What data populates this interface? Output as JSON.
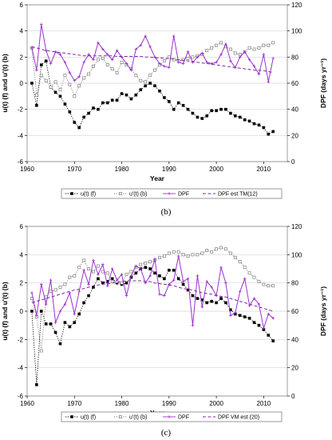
{
  "figure": {
    "background": "#ffffff"
  },
  "colors": {
    "uf": "#000000",
    "ub": "#808080",
    "dpf": "#9933cc",
    "est": "#7f2a9f"
  },
  "chart_data": [
    {
      "type": "line",
      "caption": "(b)",
      "xlabel": "Year",
      "ylabel": "u(t) (f) and u'(t) (b)",
      "ylabel2": "DPF (days yr⁻¹)",
      "xlim": [
        1960,
        2015
      ],
      "ylim": [
        -6,
        6
      ],
      "ylim2": [
        0,
        120
      ],
      "xticks": [
        1960,
        1970,
        1980,
        1990,
        2000,
        2010
      ],
      "yticks": [
        -6,
        -4,
        -2,
        0,
        2,
        4,
        6
      ],
      "yticks2": [
        0,
        20,
        40,
        60,
        80,
        100,
        120
      ],
      "grid": "horizontal",
      "legend_position": "bottom",
      "x": [
        1961,
        1962,
        1963,
        1964,
        1965,
        1966,
        1967,
        1968,
        1969,
        1970,
        1971,
        1972,
        1973,
        1974,
        1975,
        1976,
        1977,
        1978,
        1979,
        1980,
        1981,
        1982,
        1983,
        1984,
        1985,
        1986,
        1987,
        1988,
        1989,
        1990,
        1991,
        1992,
        1993,
        1994,
        1995,
        1996,
        1997,
        1998,
        1999,
        2000,
        2001,
        2002,
        2003,
        2004,
        2005,
        2006,
        2007,
        2008,
        2009,
        2010,
        2011,
        2012
      ],
      "series": [
        {
          "name": "u(t) (f)",
          "axis": "left",
          "style": "solid-filled-square",
          "values": [
            0,
            -1.7,
            1.4,
            1.7,
            -0.3,
            -0.7,
            -1.0,
            -1.6,
            -2.2,
            -3.0,
            -3.4,
            -2.6,
            -2.3,
            -1.9,
            -2.0,
            -1.5,
            -1.5,
            -1.3,
            -1.3,
            -0.8,
            -0.9,
            -1.2,
            -0.9,
            -0.5,
            -0.2,
            0,
            -0.2,
            -0.6,
            -1.1,
            -1.4,
            -2.0,
            -1.5,
            -1.7,
            -2.0,
            -2.3,
            -2.6,
            -2.7,
            -2.5,
            -2.1,
            -2.1,
            -2.0,
            -2.0,
            -2.3,
            -2.5,
            -2.6,
            -2.8,
            -2.9,
            -3.1,
            -3.2,
            -3.4,
            -3.9,
            -3.7
          ]
        },
        {
          "name": "u'(t) (b)",
          "axis": "left",
          "style": "dotted-open-square",
          "values": [
            2.7,
            -0.9,
            0.6,
            0.2,
            -0.3,
            0.1,
            -0.5,
            0.6,
            -0.1,
            -1.0,
            -0.2,
            0.4,
            0.7,
            1.3,
            1.8,
            1.9,
            1.4,
            1.1,
            0.8,
            1.6,
            1.4,
            1.1,
            0.6,
            0.2,
            0.1,
            0.6,
            1.0,
            1.4,
            1.7,
            2.0,
            1.8,
            1.7,
            1.8,
            1.9,
            2.0,
            2.1,
            2.2,
            2.5,
            2.7,
            2.9,
            3.1,
            2.8,
            2.6,
            2.3,
            2.2,
            2.4,
            2.7,
            2.6,
            2.7,
            2.9,
            2.9,
            3.1
          ]
        },
        {
          "name": "DPF",
          "axis": "right",
          "style": "solid-marker",
          "values": [
            87,
            70,
            105,
            85,
            75,
            84,
            82,
            76,
            68,
            62,
            65,
            76,
            82,
            78,
            91,
            86,
            82,
            78,
            85,
            80,
            75,
            70,
            86,
            89,
            96,
            88,
            80,
            75,
            73,
            72,
            96,
            76,
            75,
            84,
            76,
            80,
            83,
            76,
            75,
            76,
            82,
            90,
            77,
            72,
            80,
            84,
            78,
            73,
            67,
            82,
            61,
            79
          ]
        },
        {
          "name": "DPF est TM(12)",
          "axis": "right",
          "style": "dashed",
          "values": [
            88,
            87,
            86,
            85,
            84.5,
            84,
            83.5,
            83,
            82.5,
            82,
            81.5,
            81,
            81,
            81,
            81,
            81,
            81,
            81,
            80.5,
            80.5,
            80.5,
            80.5,
            80.5,
            80.5,
            80,
            80,
            79.5,
            79.5,
            79,
            79,
            78.5,
            78,
            77.5,
            77,
            76.5,
            76,
            75.5,
            75,
            74.5,
            74,
            73.5,
            73,
            72.5,
            72,
            71.5,
            71,
            70.5,
            70,
            70,
            69.5,
            69,
            68
          ]
        }
      ]
    },
    {
      "type": "line",
      "caption": "(c)",
      "xlabel": "Year",
      "ylabel": "u(t) (f) and u'(t) (b)",
      "ylabel2": "DPF (days yr⁻¹)",
      "xlim": [
        1960,
        2015
      ],
      "ylim": [
        -6,
        6
      ],
      "ylim2": [
        0,
        120
      ],
      "xticks": [
        1960,
        1970,
        1980,
        1990,
        2000,
        2010
      ],
      "yticks": [
        -6,
        -4,
        -2,
        0,
        2,
        4,
        6
      ],
      "yticks2": [
        0,
        20,
        40,
        60,
        80,
        100,
        120
      ],
      "grid": "horizontal",
      "legend_position": "bottom",
      "x": [
        1961,
        1962,
        1963,
        1964,
        1965,
        1966,
        1967,
        1968,
        1969,
        1970,
        1971,
        1972,
        1973,
        1974,
        1975,
        1976,
        1977,
        1978,
        1979,
        1980,
        1981,
        1982,
        1983,
        1984,
        1985,
        1986,
        1987,
        1988,
        1989,
        1990,
        1991,
        1992,
        1993,
        1994,
        1995,
        1996,
        1997,
        1998,
        1999,
        2000,
        2001,
        2002,
        2003,
        2004,
        2005,
        2006,
        2007,
        2008,
        2009,
        2010,
        2011,
        2012
      ],
      "series": [
        {
          "name": "u(t) (f)",
          "axis": "left",
          "style": "solid-filled-square",
          "values": [
            0,
            -5.2,
            0,
            -0.9,
            -0.9,
            -1.5,
            -2.3,
            -0.8,
            -1.1,
            -0.8,
            -0.2,
            0.6,
            1.1,
            1.7,
            2.3,
            2.0,
            2.1,
            2.3,
            2.0,
            1.9,
            2.0,
            2.4,
            2.7,
            3.0,
            3.1,
            3.0,
            2.7,
            2.5,
            2.3,
            2.9,
            2.9,
            2.3,
            1.9,
            1.5,
            1.1,
            0.9,
            0.8,
            0.6,
            0.7,
            0.6,
            0.9,
            0.6,
            0.1,
            -0.2,
            -0.3,
            -0.4,
            -0.5,
            -0.8,
            -1.0,
            -1.3,
            -1.7,
            -2.1
          ]
        },
        {
          "name": "u'(t) (b)",
          "axis": "left",
          "style": "dotted-open-square",
          "values": [
            0.9,
            -0.4,
            -2.8,
            1.0,
            1.4,
            1.5,
            1.7,
            1.9,
            2.4,
            2.5,
            3.1,
            3.6,
            3.0,
            2.8,
            3.2,
            2.8,
            2.7,
            2.1,
            2.1,
            2.0,
            2.6,
            2.8,
            3.1,
            3.3,
            3.4,
            3.5,
            3.6,
            3.8,
            3.9,
            4.1,
            4.2,
            4.2,
            4.0,
            3.9,
            4.0,
            4.0,
            4.1,
            4.3,
            4.2,
            4.4,
            4.5,
            4.4,
            4.1,
            3.8,
            3.5,
            3.1,
            2.7,
            2.4,
            2.1,
            1.9,
            1.8,
            1.8
          ]
        },
        {
          "name": "DPF",
          "axis": "right",
          "style": "solid-marker",
          "values": [
            73,
            57,
            79,
            65,
            82,
            52,
            60,
            65,
            73,
            58,
            74,
            89,
            79,
            96,
            86,
            93,
            78,
            90,
            82,
            86,
            71,
            85,
            92,
            90,
            80,
            85,
            97,
            72,
            71,
            79,
            82,
            99,
            81,
            83,
            50,
            85,
            63,
            81,
            77,
            71,
            91,
            80,
            57,
            59,
            74,
            83,
            64,
            69,
            65,
            48,
            58,
            55
          ]
        },
        {
          "name": "DPF VM est (20)",
          "axis": "right",
          "style": "dashed",
          "values": [
            66,
            67,
            68,
            69,
            70,
            71,
            72,
            73,
            74,
            75,
            75.5,
            76,
            77,
            78,
            78.5,
            79,
            79.5,
            80,
            80.5,
            81,
            81.5,
            81.5,
            81.5,
            81.5,
            81,
            81,
            80,
            79.5,
            79,
            78.5,
            78,
            77,
            76,
            75.5,
            75,
            74,
            73,
            72.5,
            72,
            71,
            70.5,
            70,
            69,
            68,
            67,
            66,
            65,
            64,
            63,
            62,
            61,
            60
          ]
        }
      ]
    }
  ]
}
